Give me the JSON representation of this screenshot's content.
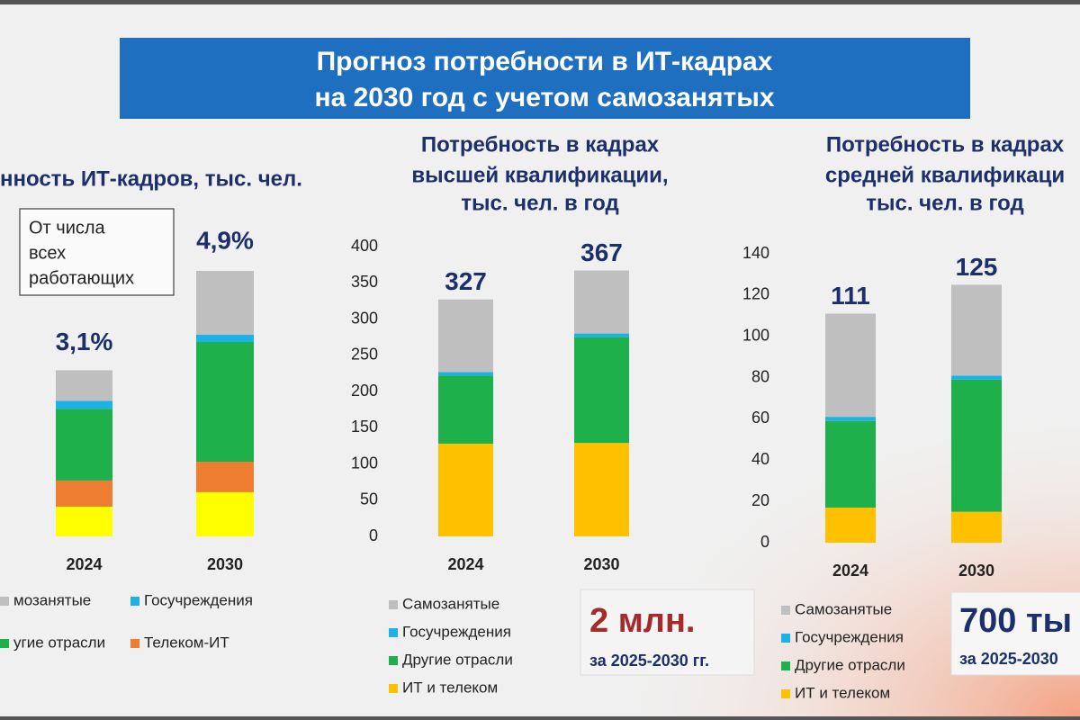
{
  "header": {
    "title": [
      "Прогноз потребности в ИТ-кадрах",
      "на 2030 год с учетом самозанятых"
    ]
  },
  "chart_data": [
    {
      "type": "stacked-bar",
      "title": [
        "нность ИТ-кадров, тыс. чел."
      ],
      "note": [
        "От числа",
        "всех",
        "работающих"
      ],
      "share_labels": [
        "3,1%",
        "4,9%"
      ],
      "categories": [
        "2024",
        "2030"
      ],
      "series": [
        {
          "color": "#ffff00",
          "values": [
            410,
            610
          ]
        },
        {
          "name": "Телеком-ИТ",
          "color": "#ed7d31",
          "values": [
            360,
            420
          ]
        },
        {
          "name": "угие отрасли",
          "color": "#1db04b",
          "values": [
            990,
            1650
          ]
        },
        {
          "name": "Госучреждения",
          "color": "#1cb2e6",
          "values": [
            110,
            100
          ]
        },
        {
          "name": "мозанятые",
          "color": "#bfbfbf",
          "values": [
            420,
            880
          ]
        }
      ]
    },
    {
      "type": "stacked-bar",
      "title": [
        "Потребность в кадрах",
        "высшей квалификации,",
        "тыс. чел. в год"
      ],
      "categories": [
        "2024",
        "2030"
      ],
      "totals": [
        327,
        367
      ],
      "callout": [
        "2 млн.",
        "за 2025-2030 гг."
      ],
      "ylim": [
        0,
        400
      ],
      "yticks": [
        0,
        50,
        100,
        150,
        200,
        250,
        300,
        350,
        400
      ],
      "series": [
        {
          "name": "ИТ и телеком",
          "color": "#ffc000",
          "values": [
            128,
            129
          ]
        },
        {
          "name": "Другие отрасли",
          "color": "#1db04b",
          "values": [
            94,
            146
          ]
        },
        {
          "name": "Госучреждения",
          "color": "#1cb2e6",
          "values": [
            5,
            5
          ]
        },
        {
          "name": "Самозанятые",
          "color": "#bfbfbf",
          "values": [
            100,
            87
          ]
        }
      ]
    },
    {
      "type": "stacked-bar",
      "title": [
        "Потребность в кадрах",
        "средней квалификаци",
        "тыс. чел. в год"
      ],
      "categories": [
        "2024",
        "2030"
      ],
      "totals": [
        111,
        125
      ],
      "callout": [
        "700 ты",
        "за 2025-2030"
      ],
      "ylim": [
        0,
        140
      ],
      "yticks": [
        0,
        20,
        40,
        60,
        80,
        100,
        120,
        140
      ],
      "series": [
        {
          "name": "ИТ и телеком",
          "color": "#ffc000",
          "values": [
            17,
            15
          ]
        },
        {
          "name": "Другие отрасли",
          "color": "#1db04b",
          "values": [
            42,
            64
          ]
        },
        {
          "name": "Госучреждения",
          "color": "#1cb2e6",
          "values": [
            2,
            2
          ]
        },
        {
          "name": "Самозанятые",
          "color": "#bfbfbf",
          "values": [
            50,
            44
          ]
        }
      ]
    }
  ]
}
